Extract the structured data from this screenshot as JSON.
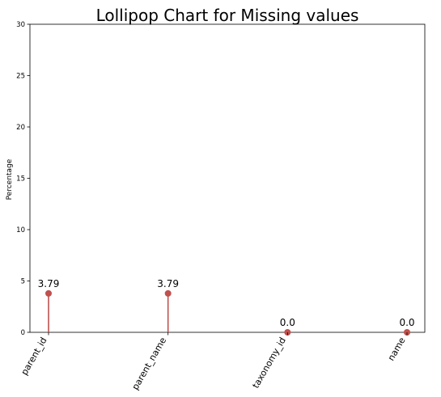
{
  "chart_data": {
    "type": "lollipop",
    "title": "Lollipop Chart for Missing values",
    "xlabel": "",
    "ylabel": "Percentage",
    "categories": [
      "parent_id",
      "parent_name",
      "taxonomy_id",
      "name"
    ],
    "values": [
      3.79,
      3.79,
      0.0,
      0.0
    ],
    "data_labels": [
      "3.79",
      "3.79",
      "0.0",
      "0.0"
    ],
    "ylim": [
      0,
      30
    ],
    "yticks": [
      0,
      5,
      10,
      15,
      20,
      25,
      30
    ],
    "grid": false,
    "legend": "none",
    "colors": {
      "stem": "#c0504d",
      "marker": "#c0504d",
      "axis": "#000000"
    }
  }
}
